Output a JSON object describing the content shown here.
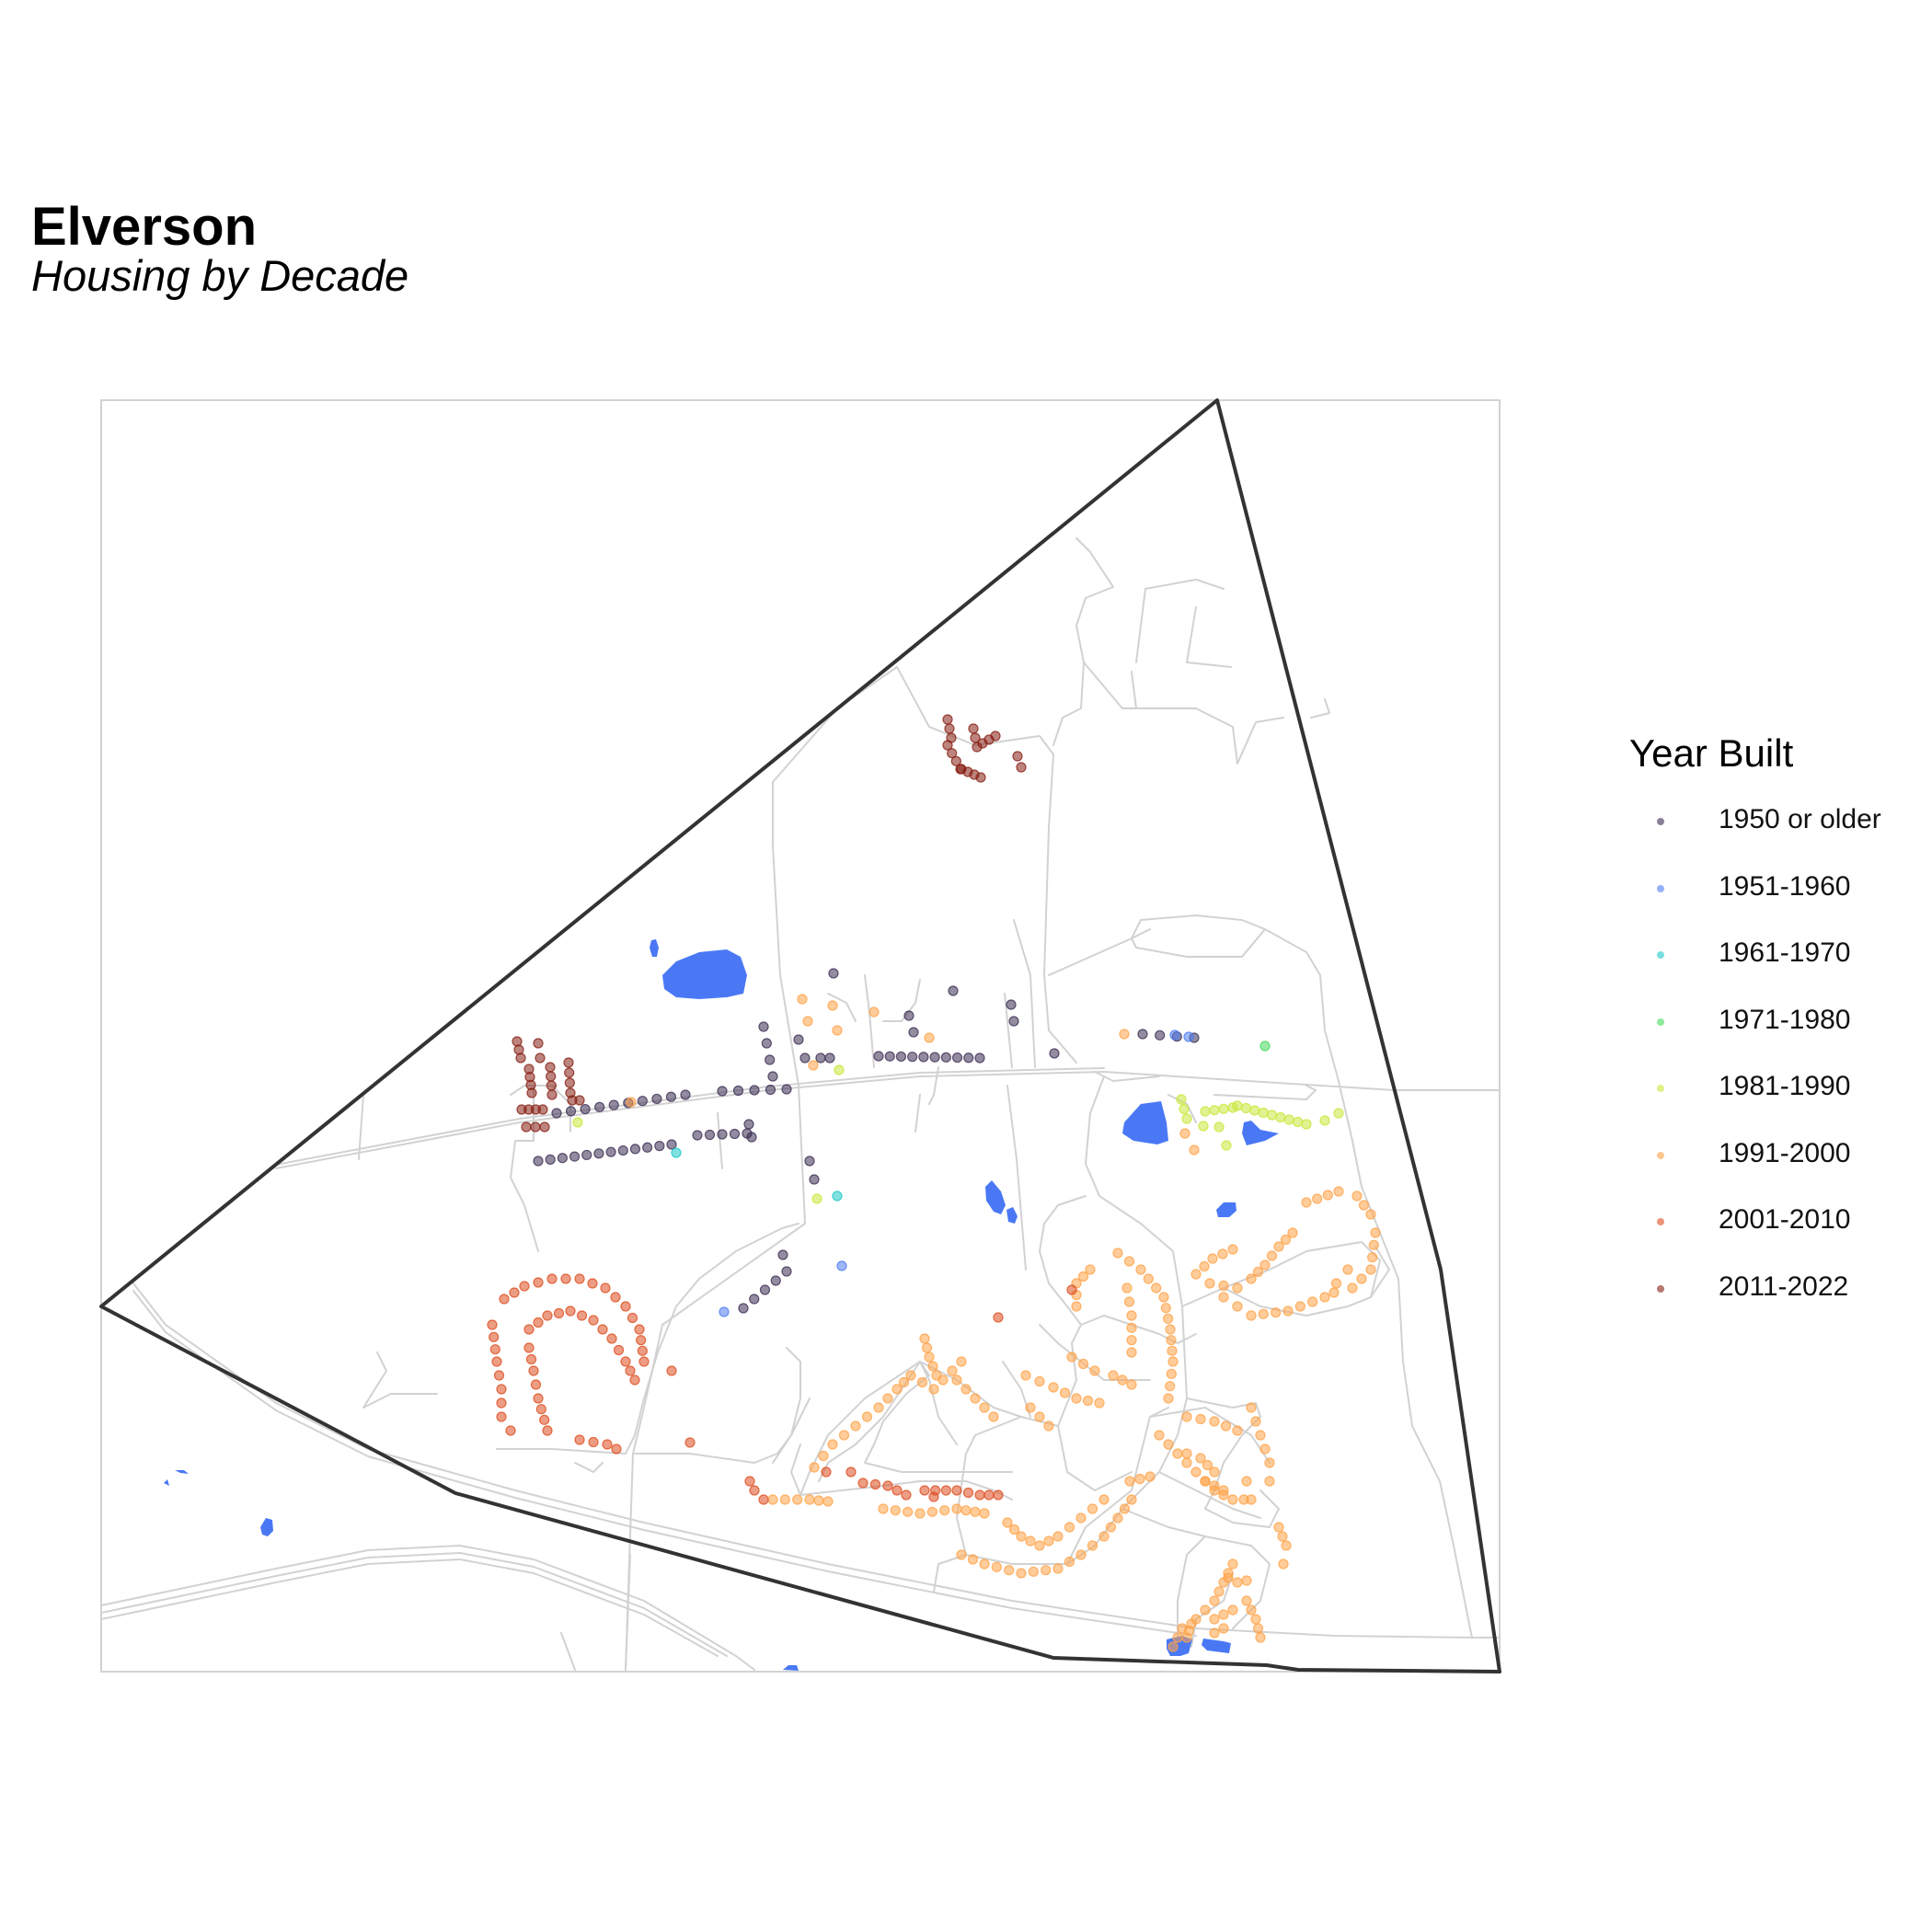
{
  "map": {
    "title": "Elverson",
    "subtitle": "Housing by Decade",
    "water_color": "#4a78f5",
    "road_color": "#d2d2d2",
    "boundary_color": "#333333"
  },
  "legend": {
    "title": "Year Built",
    "items": [
      {
        "label": "1950 or older",
        "color": "#3b2d52"
      },
      {
        "label": "1951-1960",
        "color": "#4f7cf0"
      },
      {
        "label": "1961-1970",
        "color": "#1ec9c9"
      },
      {
        "label": "1971-1980",
        "color": "#45d85a"
      },
      {
        "label": "1981-1990",
        "color": "#c6e838"
      },
      {
        "label": "1991-2000",
        "color": "#ffa247"
      },
      {
        "label": "2001-2010",
        "color": "#dd4d1f"
      },
      {
        "label": "2011-2022",
        "color": "#861f14"
      }
    ]
  }
}
